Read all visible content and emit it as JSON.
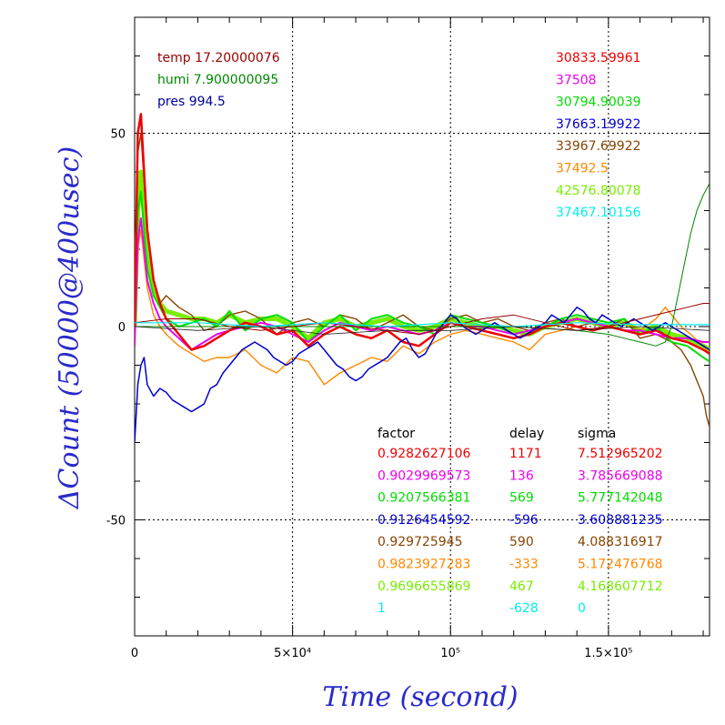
{
  "chart_data": {
    "type": "line",
    "xlabel": "Time (second)",
    "ylabel": "ΔCount (50000@400usec)",
    "xlim": [
      0,
      182000
    ],
    "ylim": [
      -80,
      80
    ],
    "x_ticks": [
      {
        "value": 0,
        "label": "0"
      },
      {
        "value": 50000,
        "label": "5×10⁴"
      },
      {
        "value": 100000,
        "label": "10⁵"
      },
      {
        "value": 150000,
        "label": "1.5×10⁵"
      }
    ],
    "y_ticks": [
      {
        "value": -50,
        "label": "-50"
      },
      {
        "value": 0,
        "label": "0"
      },
      {
        "value": 50,
        "label": "50"
      }
    ],
    "grid": true,
    "env": [
      {
        "text": "temp 17.20000076",
        "color": "#990000"
      },
      {
        "text": "humi 7.900000095",
        "color": "#008800"
      },
      {
        "text": "pres 994.5",
        "color": "#000099"
      }
    ],
    "means": [
      {
        "text": "30833.59961",
        "color": "#ee0000"
      },
      {
        "text": "37508",
        "color": "#ee00ee"
      },
      {
        "text": "30794.90039",
        "color": "#00dd00"
      },
      {
        "text": "37663.19922",
        "color": "#0000cc"
      },
      {
        "text": "33967.69922",
        "color": "#884400"
      },
      {
        "text": "37492.5",
        "color": "#ff8800"
      },
      {
        "text": "42576.80078",
        "color": "#77ee00"
      },
      {
        "text": "37467.10156",
        "color": "#00eeee"
      }
    ],
    "table": {
      "headers": [
        "factor",
        "delay",
        "sigma"
      ],
      "rows": [
        {
          "factor": "0.9282627106",
          "delay": "1171",
          "sigma": "7.512965202",
          "color": "#ee0000"
        },
        {
          "factor": "0.9029969573",
          "delay": "136",
          "sigma": "3.785669088",
          "color": "#ee00ee"
        },
        {
          "factor": "0.9207566381",
          "delay": "569",
          "sigma": "5.777142048",
          "color": "#00dd00"
        },
        {
          "factor": "0.9126454592",
          "delay": "-596",
          "sigma": "3.608881235",
          "color": "#0000cc"
        },
        {
          "factor": "0.929725945",
          "delay": "590",
          "sigma": "4.088316917",
          "color": "#884400"
        },
        {
          "factor": "0.9823927283",
          "delay": "-333",
          "sigma": "5.172476768",
          "color": "#ff8800"
        },
        {
          "factor": "0.9696655869",
          "delay": "467",
          "sigma": "4.168607712",
          "color": "#77ee00"
        },
        {
          "factor": "1",
          "delay": "-628",
          "sigma": "0",
          "color": "#00eeee"
        }
      ]
    },
    "series": [
      {
        "color": "#77ee00",
        "width": 5,
        "x": [
          0,
          1000,
          2000,
          4000,
          6000,
          8000,
          10000,
          14000,
          18000,
          22000,
          26000,
          30000,
          35000,
          40000,
          45000,
          50000,
          55000,
          60000,
          65000,
          70000,
          75000,
          80000,
          85000,
          90000,
          95000,
          100000,
          105000,
          110000,
          115000,
          120000,
          125000,
          130000,
          135000,
          140000,
          145000,
          150000,
          155000,
          160000,
          165000,
          170000,
          175000,
          180000,
          182000
        ],
        "y": [
          0,
          30,
          40,
          20,
          10,
          6,
          4,
          3,
          2,
          2,
          1,
          3,
          1,
          2,
          2,
          0,
          -3,
          1,
          2,
          0,
          1,
          2,
          0,
          -1,
          0,
          2,
          1,
          0,
          0,
          -1,
          -2,
          0,
          1,
          2,
          1,
          0,
          1,
          -1,
          0,
          -2,
          -3,
          -5,
          -6
        ]
      },
      {
        "color": "#884400",
        "width": 1.4,
        "x": [
          0,
          1000,
          2000,
          4000,
          6000,
          8000,
          10000,
          14000,
          18000,
          22000,
          26000,
          30000,
          35000,
          40000,
          45000,
          50000,
          55000,
          60000,
          65000,
          70000,
          75000,
          80000,
          85000,
          90000,
          95000,
          100000,
          105000,
          110000,
          115000,
          120000,
          125000,
          130000,
          135000,
          140000,
          145000,
          150000,
          155000,
          160000,
          165000,
          170000,
          173000,
          176000,
          178000,
          180000,
          181000,
          182000
        ],
        "y": [
          0,
          45,
          50,
          25,
          12,
          6,
          8,
          5,
          3,
          -1,
          0,
          3,
          4,
          2,
          -2,
          1,
          2,
          0,
          3,
          2,
          -1,
          1,
          3,
          0,
          -1,
          2,
          3,
          1,
          2,
          0,
          -1,
          1,
          2,
          0,
          1,
          0,
          2,
          -3,
          -2,
          -4,
          -6,
          -10,
          -14,
          -18,
          -23,
          -26
        ]
      },
      {
        "color": "#00dd00",
        "width": 2,
        "x": [
          0,
          1000,
          2000,
          4000,
          6000,
          8000,
          10000,
          14000,
          18000,
          22000,
          26000,
          30000,
          35000,
          40000,
          45000,
          50000,
          55000,
          60000,
          65000,
          70000,
          75000,
          80000,
          85000,
          90000,
          95000,
          100000,
          105000,
          110000,
          115000,
          120000,
          125000,
          130000,
          135000,
          140000,
          145000,
          150000,
          155000,
          160000,
          165000,
          170000,
          175000,
          180000,
          182000
        ],
        "y": [
          0,
          30,
          35,
          15,
          8,
          5,
          2,
          0,
          1,
          2,
          0,
          4,
          -1,
          2,
          3,
          1,
          -4,
          0,
          3,
          -1,
          2,
          3,
          1,
          0,
          -2,
          3,
          2,
          1,
          0,
          -2,
          -1,
          0,
          2,
          3,
          2,
          1,
          2,
          -2,
          0,
          -4,
          -5,
          -8,
          -9
        ]
      },
      {
        "color": "#ff8800",
        "width": 1.4,
        "x": [
          0,
          1000,
          2000,
          4000,
          6000,
          8000,
          10000,
          14000,
          18000,
          22000,
          26000,
          30000,
          35000,
          40000,
          45000,
          50000,
          55000,
          60000,
          65000,
          70000,
          75000,
          80000,
          85000,
          90000,
          95000,
          100000,
          105000,
          110000,
          115000,
          120000,
          125000,
          130000,
          135000,
          140000,
          145000,
          150000,
          155000,
          160000,
          165000,
          168000,
          170000,
          173000,
          176000,
          180000,
          182000
        ],
        "y": [
          0,
          20,
          25,
          10,
          3,
          0,
          -2,
          -5,
          -7,
          -9,
          -8,
          -8,
          -6,
          -10,
          -12,
          -8,
          -9,
          -15,
          -12,
          -10,
          -8,
          -9,
          -5,
          -7,
          -4,
          -2,
          -1,
          -2,
          -3,
          -4,
          -6,
          -2,
          -1,
          0,
          -1,
          0,
          1,
          -1,
          2,
          5,
          3,
          0,
          -2,
          -5,
          -7
        ]
      },
      {
        "color": "#ee00ee",
        "width": 2,
        "x": [
          0,
          1000,
          2000,
          4000,
          6000,
          8000,
          10000,
          14000,
          18000,
          22000,
          26000,
          30000,
          35000,
          40000,
          45000,
          50000,
          55000,
          60000,
          65000,
          70000,
          75000,
          80000,
          85000,
          90000,
          95000,
          100000,
          105000,
          110000,
          115000,
          120000,
          125000,
          130000,
          135000,
          140000,
          145000,
          150000,
          155000,
          160000,
          165000,
          170000,
          175000,
          180000,
          182000
        ],
        "y": [
          -5,
          22,
          28,
          12,
          6,
          2,
          0,
          -3,
          -6,
          -4,
          -2,
          -1,
          0,
          1,
          0,
          -2,
          -4,
          -1,
          1,
          0,
          -1,
          0,
          -1,
          -2,
          -1,
          1,
          0,
          0,
          -1,
          -2,
          -1,
          0,
          1,
          2,
          1,
          0,
          -1,
          -1,
          -2,
          -3,
          -3,
          -4,
          -4
        ]
      },
      {
        "color": "#ee0000",
        "width": 2.5,
        "x": [
          0,
          1000,
          2000,
          4000,
          6000,
          8000,
          10000,
          14000,
          18000,
          22000,
          26000,
          30000,
          35000,
          40000,
          45000,
          50000,
          55000,
          60000,
          65000,
          70000,
          75000,
          80000,
          85000,
          90000,
          95000,
          100000,
          105000,
          110000,
          115000,
          120000,
          125000,
          130000,
          135000,
          140000,
          145000,
          150000,
          155000,
          160000,
          165000,
          170000,
          175000,
          180000,
          182000
        ],
        "y": [
          0,
          50,
          55,
          25,
          12,
          6,
          2,
          -2,
          -6,
          -5,
          -3,
          -1,
          1,
          0,
          -2,
          -1,
          -5,
          -2,
          0,
          -2,
          -3,
          -1,
          -4,
          -5,
          -2,
          1,
          0,
          -1,
          -2,
          -3,
          -2,
          0,
          1,
          0,
          -1,
          0,
          -1,
          -2,
          -1,
          -3,
          -4,
          -6,
          -7
        ]
      },
      {
        "color": "#0000cc",
        "width": 1.5,
        "x": [
          0,
          1000,
          2000,
          3000,
          4000,
          6000,
          8000,
          10000,
          12000,
          14000,
          16000,
          18000,
          20000,
          22000,
          24000,
          26000,
          28000,
          30000,
          32000,
          34000,
          36000,
          38000,
          40000,
          42000,
          44000,
          46000,
          48000,
          50000,
          52000,
          54000,
          56000,
          58000,
          60000,
          62000,
          64000,
          66000,
          68000,
          70000,
          72000,
          74000,
          76000,
          78000,
          80000,
          82000,
          84000,
          86000,
          88000,
          90000,
          92000,
          94000,
          96000,
          98000,
          100000,
          102000,
          104000,
          106000,
          108000,
          110000,
          112000,
          114000,
          116000,
          118000,
          120000,
          122000,
          124000,
          126000,
          128000,
          130000,
          132000,
          134000,
          136000,
          138000,
          140000,
          142000,
          144000,
          146000,
          148000,
          150000,
          152000,
          154000,
          156000,
          158000,
          160000,
          162000,
          164000,
          166000,
          168000,
          170000,
          172000,
          174000,
          176000,
          178000,
          180000,
          182000
        ],
        "y": [
          -30,
          -15,
          -10,
          -8,
          -15,
          -18,
          -16,
          -17,
          -19,
          -20,
          -21,
          -22,
          -21,
          -20,
          -16,
          -15,
          -12,
          -10,
          -8,
          -6,
          -5,
          -4,
          -5,
          -6,
          -8,
          -9,
          -10,
          -9,
          -7,
          -6,
          -5,
          -4,
          -6,
          -8,
          -10,
          -11,
          -13,
          -14,
          -13,
          -11,
          -10,
          -9,
          -8,
          -6,
          -4,
          -3,
          -6,
          -8,
          -7,
          -4,
          -1,
          1,
          3,
          2,
          0,
          -1,
          -2,
          -1,
          0,
          1,
          0,
          -1,
          -2,
          -3,
          -2,
          -1,
          0,
          1,
          3,
          2,
          1,
          3,
          5,
          4,
          2,
          1,
          3,
          2,
          1,
          0,
          1,
          2,
          1,
          0,
          -1,
          0,
          1,
          0,
          -1,
          -2,
          -3,
          -4,
          -5,
          -6
        ]
      },
      {
        "color": "#008800",
        "width": 1,
        "x": [
          0,
          10000,
          20000,
          40000,
          60000,
          80000,
          100000,
          120000,
          140000,
          150000,
          155000,
          160000,
          165000,
          168000,
          170000,
          172000,
          174000,
          176000,
          178000,
          180000,
          182000
        ],
        "y": [
          0,
          0,
          0,
          0,
          0,
          0,
          0,
          0,
          -1,
          -2,
          -3,
          -4,
          -5,
          -4,
          0,
          8,
          16,
          24,
          30,
          34,
          37
        ]
      },
      {
        "color": "#990000",
        "width": 1,
        "x": [
          0,
          10000,
          20000,
          30000,
          40000,
          50000,
          60000,
          70000,
          80000,
          90000,
          100000,
          110000,
          120000,
          130000,
          140000,
          150000,
          160000,
          170000,
          175000,
          180000,
          182000
        ],
        "y": [
          1,
          2,
          2,
          0,
          -1,
          0,
          1,
          0,
          -1,
          -2,
          0,
          2,
          3,
          1,
          -1,
          0,
          2,
          4,
          5,
          6,
          6
        ]
      },
      {
        "color": "#00eeee",
        "width": 1.2,
        "x": [
          0,
          20000,
          40000,
          60000,
          80000,
          100000,
          120000,
          140000,
          160000,
          170000,
          182000
        ],
        "y": [
          1,
          1,
          0,
          1,
          0,
          1,
          0,
          1,
          0.5,
          0.5,
          0.5
        ]
      },
      {
        "color": "#222222",
        "width": 0.8,
        "x": [
          0,
          20000,
          40000,
          60000,
          80000,
          100000,
          120000,
          140000,
          160000,
          182000
        ],
        "y": [
          0,
          -1,
          0,
          -2,
          -1,
          -1,
          0,
          -1,
          0,
          -1
        ]
      }
    ]
  }
}
